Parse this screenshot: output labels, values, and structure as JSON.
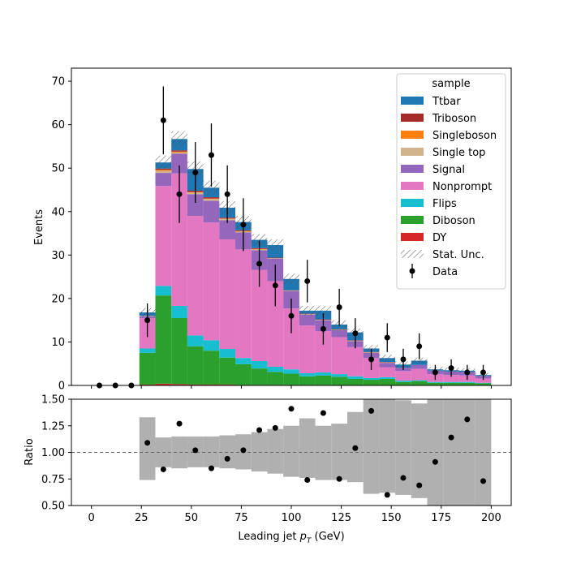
{
  "colors": {
    "Ttbar": "#1f77b4",
    "Triboson": "#a52a2a",
    "Singleboson": "#ff7f0e",
    "Single top": "#d2b48c",
    "Signal": "#9467bd",
    "Nonprompt": "#e377c2",
    "Flips": "#17becf",
    "Diboson": "#2ca02c",
    "DY": "#d62728",
    "ratio_band": "#b0b0b0"
  },
  "chart_data": [
    {
      "type": "bar",
      "stacked": true,
      "ylabel": "Events",
      "ylim": [
        0,
        73
      ],
      "xlim": [
        -10,
        210
      ],
      "yticks": [
        0,
        10,
        20,
        30,
        40,
        50,
        60,
        70
      ],
      "legend": {
        "title": "sample",
        "placement": "top-right",
        "entries": [
          "Ttbar",
          "Triboson",
          "Singleboson",
          "Single top",
          "Signal",
          "Nonprompt",
          "Flips",
          "Diboson",
          "DY",
          "Stat. Unc.",
          "Data"
        ]
      },
      "bin_edges": [
        0,
        8,
        16,
        24,
        32,
        40,
        48,
        56,
        64,
        72,
        80,
        88,
        96,
        104,
        112,
        120,
        128,
        136,
        144,
        152,
        160,
        168,
        176,
        184,
        192,
        200
      ],
      "series": [
        {
          "name": "DY",
          "values": [
            0,
            0,
            0,
            0.2,
            0.4,
            0.3,
            0.2,
            0.2,
            0.2,
            0.1,
            0.1,
            0.1,
            0.1,
            0.1,
            0.1,
            0,
            0,
            0,
            0,
            0,
            0,
            0,
            0,
            0,
            0
          ]
        },
        {
          "name": "Diboson",
          "values": [
            0,
            0,
            0,
            7.3,
            20.3,
            15.2,
            8.8,
            7.8,
            6.2,
            4.8,
            3.8,
            3.0,
            2.6,
            2.0,
            2.2,
            2.0,
            1.5,
            1.3,
            1.5,
            0.8,
            1.0,
            0.6,
            0.6,
            0.6,
            0.5
          ]
        },
        {
          "name": "Flips",
          "values": [
            0,
            0,
            0,
            1.0,
            2.2,
            2.8,
            2.5,
            2.4,
            2.0,
            1.4,
            1.7,
            1.2,
            1.0,
            0.7,
            0.7,
            0.6,
            0.6,
            0.4,
            0.4,
            0.3,
            0.2,
            0.2,
            0.2,
            0.2,
            0.1
          ]
        },
        {
          "name": "Nonprompt",
          "values": [
            0,
            0,
            0,
            7.0,
            23.0,
            30.5,
            27.5,
            27.1,
            25.2,
            25.0,
            21.0,
            19.7,
            14.0,
            11.0,
            9.5,
            8.5,
            6.7,
            4.6,
            2.3,
            2.2,
            2.6,
            1.8,
            1.6,
            1.5,
            1.0
          ]
        },
        {
          "name": "Signal",
          "values": [
            0,
            0,
            0,
            0.4,
            3.0,
            4.5,
            5.0,
            5.0,
            4.4,
            3.9,
            4.5,
            5.2,
            4.0,
            2.5,
            2.5,
            1.6,
            1.4,
            1.2,
            1.0,
            0.8,
            0.9,
            0.8,
            0.8,
            0.8,
            0.6
          ]
        },
        {
          "name": "Single top",
          "values": [
            0,
            0,
            0,
            0.1,
            0.5,
            0.3,
            0.4,
            0.4,
            0.3,
            0.2,
            0.2,
            0.1,
            0.1,
            0.1,
            0.1,
            0.1,
            0.1,
            0.1,
            0.1,
            0,
            0,
            0,
            0,
            0,
            0
          ]
        },
        {
          "name": "Singleboson",
          "values": [
            0,
            0,
            0,
            0,
            0.2,
            0.2,
            0.1,
            0.1,
            0.1,
            0.1,
            0.1,
            0,
            0,
            0,
            0,
            0,
            0,
            0,
            0,
            0,
            0,
            0,
            0,
            0,
            0
          ]
        },
        {
          "name": "Triboson",
          "values": [
            0,
            0,
            0,
            0,
            0.3,
            0.3,
            0.3,
            0.3,
            0.2,
            0.2,
            0.2,
            0.1,
            0.1,
            0.1,
            0.1,
            0.1,
            0.1,
            0.1,
            0.1,
            0,
            0,
            0,
            0,
            0,
            0
          ]
        },
        {
          "name": "Ttbar",
          "values": [
            0,
            0,
            0,
            0.8,
            1.4,
            2.6,
            5.0,
            2.2,
            2.3,
            1.9,
            1.9,
            2.9,
            2.6,
            0.7,
            2.0,
            1.1,
            1.8,
            0.8,
            0.9,
            0.7,
            1.0,
            0.3,
            0.3,
            0.3,
            0.2
          ]
        }
      ],
      "stat_unc": [
        0,
        0,
        0,
        1.0,
        1.6,
        1.8,
        1.7,
        1.6,
        1.5,
        1.4,
        1.3,
        1.3,
        1.2,
        1.1,
        1.1,
        1.0,
        0.9,
        0.8,
        0.8,
        0.7,
        0.7,
        0.6,
        0.6,
        0.6,
        0.5
      ],
      "data": {
        "name": "Data",
        "x": [
          4,
          12,
          20,
          28,
          36,
          44,
          52,
          60,
          68,
          76,
          84,
          92,
          100,
          108,
          116,
          124,
          132,
          140,
          148,
          156,
          164,
          172,
          180,
          188,
          196
        ],
        "y": [
          0,
          0,
          0,
          15,
          61,
          44,
          49,
          53,
          44,
          37,
          28,
          23,
          16,
          24,
          13,
          18,
          12,
          6,
          11,
          6,
          9,
          3,
          4,
          3,
          3
        ]
      }
    },
    {
      "type": "scatter",
      "xlabel": "Leading jet  p_T (GeV)",
      "ylabel": "Ratio",
      "ylim": [
        0.5,
        1.5
      ],
      "xlim": [
        -10,
        210
      ],
      "xticks": [
        0,
        25,
        50,
        75,
        100,
        125,
        150,
        175,
        200
      ],
      "yticks": [
        0.5,
        0.75,
        1.0,
        1.25,
        1.5
      ],
      "ytick_labels": [
        "0.50",
        "0.75",
        "1.00",
        "1.25",
        "1.50"
      ],
      "reference_line": 1.0,
      "band": {
        "lo": [
          null,
          null,
          null,
          0.74,
          0.86,
          0.85,
          0.86,
          0.86,
          0.85,
          0.84,
          0.82,
          0.8,
          0.77,
          0.76,
          0.74,
          0.74,
          0.72,
          0.61,
          0.62,
          0.6,
          0.57,
          0.5,
          0.5,
          0.5,
          0.5
        ],
        "hi": [
          null,
          null,
          null,
          1.33,
          1.14,
          1.15,
          1.15,
          1.15,
          1.16,
          1.17,
          1.19,
          1.22,
          1.25,
          1.32,
          1.25,
          1.27,
          1.38,
          1.5,
          1.5,
          1.49,
          1.46,
          1.5,
          1.5,
          1.5,
          1.5
        ]
      },
      "x": [
        28,
        36,
        44,
        52,
        60,
        68,
        76,
        84,
        92,
        100,
        108,
        116,
        124,
        132,
        140,
        148,
        156,
        164,
        172,
        180,
        188,
        196
      ],
      "y": [
        1.09,
        0.84,
        1.27,
        1.02,
        0.85,
        0.94,
        1.02,
        1.21,
        1.23,
        1.41,
        0.74,
        1.37,
        0.75,
        1.04,
        1.39,
        0.6,
        0.76,
        0.69,
        0.91,
        1.14,
        1.31,
        0.73
      ]
    }
  ]
}
